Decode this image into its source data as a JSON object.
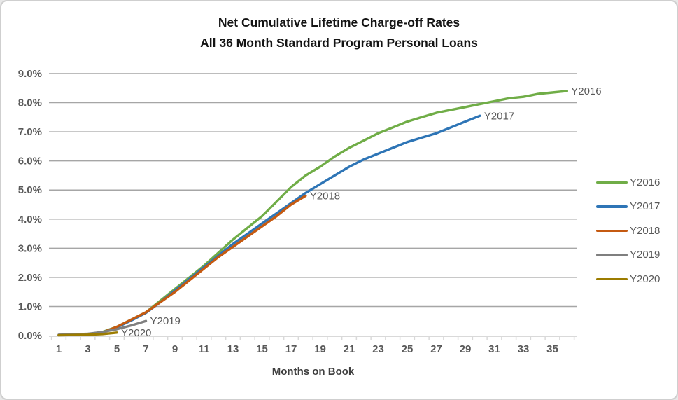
{
  "window": {
    "background": "#ffffff",
    "border_color": "#cfcfcf"
  },
  "chart_data": {
    "type": "line",
    "title_line1": "Net Cumulative Lifetime Charge-off Rates",
    "title_line2": "All 36 Month Standard Program Personal Loans",
    "xlabel": "Months on Book",
    "ylabel": "",
    "ylim": [
      0,
      9
    ],
    "x_range": [
      1,
      36
    ],
    "grid": true,
    "legend_position": "right",
    "y_tick_labels": [
      "0.0%",
      "1.0%",
      "2.0%",
      "3.0%",
      "4.0%",
      "5.0%",
      "6.0%",
      "7.0%",
      "8.0%",
      "9.0%"
    ],
    "x_tick_labels": [
      "1",
      "3",
      "5",
      "7",
      "9",
      "11",
      "13",
      "15",
      "17",
      "19",
      "21",
      "23",
      "25",
      "27",
      "29",
      "31",
      "33",
      "35"
    ],
    "x_tick_months": [
      1,
      3,
      5,
      7,
      9,
      11,
      13,
      15,
      17,
      19,
      21,
      23,
      25,
      27,
      29,
      31,
      33,
      35
    ],
    "colors": {
      "grid": "#a6a6a6",
      "axis": "#d9d9d9",
      "tick_label": "#595959",
      "data_label": "#595959",
      "title": "#141414"
    },
    "series": [
      {
        "name": "Y2016",
        "color": "#70AD47",
        "start_month": 1,
        "end_label": "Y2016",
        "values": [
          0.02,
          0.03,
          0.05,
          0.12,
          0.3,
          0.55,
          0.8,
          1.2,
          1.6,
          2.0,
          2.4,
          2.85,
          3.3,
          3.7,
          4.1,
          4.6,
          5.1,
          5.5,
          5.8,
          6.15,
          6.45,
          6.7,
          6.95,
          7.15,
          7.35,
          7.5,
          7.65,
          7.75,
          7.85,
          7.95,
          8.05,
          8.15,
          8.2,
          8.3,
          8.35,
          8.4
        ]
      },
      {
        "name": "Y2017",
        "color": "#2E75B6",
        "start_month": 1,
        "end_label": "Y2017",
        "values": [
          0.02,
          0.03,
          0.05,
          0.1,
          0.28,
          0.52,
          0.78,
          1.15,
          1.55,
          1.95,
          2.35,
          2.75,
          3.15,
          3.5,
          3.85,
          4.2,
          4.55,
          4.9,
          5.2,
          5.5,
          5.8,
          6.05,
          6.25,
          6.45,
          6.65,
          6.8,
          6.95,
          7.15,
          7.35,
          7.55
        ]
      },
      {
        "name": "Y2018",
        "color": "#C55A11",
        "start_month": 1,
        "end_label": "Y2018",
        "values": [
          0.02,
          0.03,
          0.05,
          0.1,
          0.3,
          0.55,
          0.8,
          1.15,
          1.5,
          1.9,
          2.3,
          2.7,
          3.05,
          3.4,
          3.75,
          4.1,
          4.5,
          4.8
        ]
      },
      {
        "name": "Y2019",
        "color": "#7F7F7F",
        "start_month": 1,
        "end_label": "Y2019",
        "values": [
          0.03,
          0.04,
          0.06,
          0.12,
          0.22,
          0.35,
          0.5
        ]
      },
      {
        "name": "Y2020",
        "color": "#9C7C00",
        "start_month": 1,
        "end_label": "Y2020",
        "values": [
          0.01,
          0.02,
          0.03,
          0.05,
          0.1
        ]
      }
    ]
  }
}
